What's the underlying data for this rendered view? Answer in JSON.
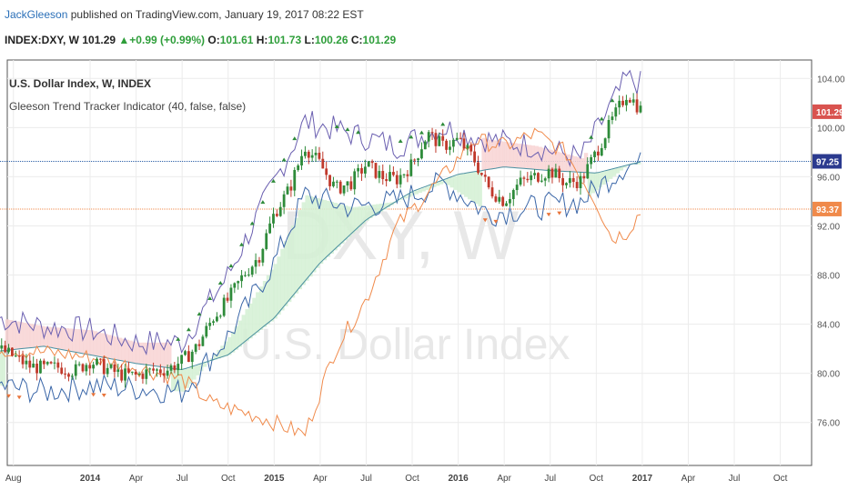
{
  "header": {
    "author": "JackGleeson",
    "published_text": "published on TradingView.com, January 19, 2017 08:22 EST",
    "symbol": "INDEX:DXY, W",
    "last": "101.29",
    "change": "+0.99 (+0.99%)",
    "open_label": "O:",
    "open": "101.61",
    "high_label": "H:",
    "high": "101.73",
    "low_label": "L:",
    "low": "100.26",
    "close_label": "C:",
    "close": "101.29",
    "up_arrow": "▲"
  },
  "legend": {
    "title": "U.S. Dollar Index, W, INDEX",
    "indicator": "Gleeson Trend Tracker Indicator (40, false, false)"
  },
  "watermark": {
    "symbol": "DXY, W",
    "name": "U.S. Dollar Index"
  },
  "price_badges": [
    {
      "value": "101.29",
      "price": 101.29,
      "color": "#d9534f"
    },
    {
      "value": "97.25",
      "price": 97.25,
      "color": "#2b3a8f"
    },
    {
      "value": "93.37",
      "price": 93.37,
      "color": "#f08a4b"
    }
  ],
  "colors": {
    "bull_candle": "#2e8b3a",
    "bear_candle": "#c0392b",
    "upper_band": "#6a5fb0",
    "lower_band": "#3a66a8",
    "slow_line": "#4a8fa0",
    "lagging_line": "#f08a4b",
    "bull_fill": "#d4f0d4",
    "bear_fill": "#f8d4d4",
    "h_line_blue": "#2c5fa6",
    "h_line_orange": "#f08a4b"
  },
  "chart_data": {
    "type": "candlestick",
    "ylim": [
      72.5,
      105.5
    ],
    "y_ticks": [
      76.0,
      80.0,
      84.0,
      88.0,
      92.0,
      96.0,
      100.0,
      104.0
    ],
    "y_tick_labels": [
      "76.00",
      "80.00",
      "84.00",
      "88.00",
      "92.00",
      "96.00",
      "100.00",
      "104.00"
    ],
    "x_tick_labels": [
      "Aug",
      "2014",
      "Apr",
      "Jul",
      "Oct",
      "2015",
      "Apr",
      "Jul",
      "Oct",
      "2016",
      "Apr",
      "Jul",
      "Oct",
      "2017",
      "Apr",
      "Jul",
      "Oct"
    ],
    "x_tick_dates": [
      "2013-08",
      "2014-01",
      "2014-04",
      "2014-07",
      "2014-10",
      "2015-01",
      "2015-04",
      "2015-07",
      "2015-10",
      "2016-01",
      "2016-04",
      "2016-07",
      "2016-10",
      "2017-01",
      "2017-04",
      "2017-07",
      "2017-10"
    ],
    "grid": true,
    "horizontal_lines": [
      97.25,
      93.37
    ],
    "price_path": [
      [
        "2013-07",
        82.0
      ],
      [
        "2013-08",
        81.4
      ],
      [
        "2013-09",
        80.6
      ],
      [
        "2013-10",
        80.4
      ],
      [
        "2013-11",
        80.5
      ],
      [
        "2013-12",
        80.2
      ],
      [
        "2014-01",
        81.0
      ],
      [
        "2014-02",
        80.4
      ],
      [
        "2014-03",
        79.9
      ],
      [
        "2014-04",
        79.8
      ],
      [
        "2014-05",
        80.2
      ],
      [
        "2014-06",
        80.3
      ],
      [
        "2014-07",
        81.0
      ],
      [
        "2014-08",
        82.2
      ],
      [
        "2014-09",
        84.5
      ],
      [
        "2014-10",
        86.0
      ],
      [
        "2014-11",
        88.0
      ],
      [
        "2014-12",
        89.5
      ],
      [
        "2015-01",
        93.0
      ],
      [
        "2015-02",
        95.0
      ],
      [
        "2015-03",
        98.5
      ],
      [
        "2015-04",
        97.0
      ],
      [
        "2015-05",
        95.0
      ],
      [
        "2015-06",
        95.5
      ],
      [
        "2015-07",
        97.0
      ],
      [
        "2015-08",
        96.0
      ],
      [
        "2015-09",
        95.8
      ],
      [
        "2015-10",
        97.0
      ],
      [
        "2015-11",
        99.5
      ],
      [
        "2015-12",
        98.5
      ],
      [
        "2016-01",
        99.0
      ],
      [
        "2016-02",
        97.5
      ],
      [
        "2016-03",
        95.0
      ],
      [
        "2016-04",
        94.0
      ],
      [
        "2016-05",
        95.5
      ],
      [
        "2016-06",
        96.0
      ],
      [
        "2016-07",
        96.5
      ],
      [
        "2016-08",
        95.5
      ],
      [
        "2016-09",
        95.7
      ],
      [
        "2016-10",
        98.0
      ],
      [
        "2016-11",
        100.5
      ],
      [
        "2016-12",
        102.8
      ],
      [
        "2017-01",
        101.29
      ]
    ],
    "upper_band_path": [
      [
        "2013-07",
        84.5
      ],
      [
        "2013-10",
        83.8
      ],
      [
        "2014-01",
        83.5
      ],
      [
        "2014-04",
        82.5
      ],
      [
        "2014-07",
        82.5
      ],
      [
        "2014-10",
        88.0
      ],
      [
        "2015-01",
        95.5
      ],
      [
        "2015-03",
        100.5
      ],
      [
        "2015-06",
        99.5
      ],
      [
        "2015-09",
        98.5
      ],
      [
        "2015-12",
        100.0
      ],
      [
        "2016-03",
        99.0
      ],
      [
        "2016-06",
        98.5
      ],
      [
        "2016-09",
        97.5
      ],
      [
        "2016-12",
        104.0
      ],
      [
        "2017-01",
        103.5
      ]
    ],
    "lower_band_path": [
      [
        "2013-07",
        79.0
      ],
      [
        "2013-10",
        78.5
      ],
      [
        "2014-01",
        79.0
      ],
      [
        "2014-04",
        78.8
      ],
      [
        "2014-07",
        78.5
      ],
      [
        "2014-10",
        83.0
      ],
      [
        "2015-01",
        89.0
      ],
      [
        "2015-03",
        94.5
      ],
      [
        "2015-06",
        93.5
      ],
      [
        "2015-09",
        94.0
      ],
      [
        "2015-12",
        95.5
      ],
      [
        "2016-03",
        93.0
      ],
      [
        "2016-06",
        93.5
      ],
      [
        "2016-09",
        94.0
      ],
      [
        "2016-12",
        97.0
      ],
      [
        "2017-01",
        97.0
      ]
    ],
    "slow_line_path": [
      [
        "2013-07",
        81.8
      ],
      [
        "2013-10",
        82.2
      ],
      [
        "2014-01",
        81.5
      ],
      [
        "2014-04",
        80.8
      ],
      [
        "2014-07",
        80.3
      ],
      [
        "2014-10",
        81.5
      ],
      [
        "2015-01",
        84.5
      ],
      [
        "2015-04",
        89.0
      ],
      [
        "2015-07",
        92.5
      ],
      [
        "2015-10",
        94.8
      ],
      [
        "2016-01",
        96.2
      ],
      [
        "2016-04",
        96.8
      ],
      [
        "2016-07",
        96.5
      ],
      [
        "2016-10",
        96.3
      ],
      [
        "2017-01",
        97.25
      ]
    ],
    "lagging_line_path": [
      [
        "2013-07",
        82.0
      ],
      [
        "2013-12",
        81.5
      ],
      [
        "2014-04",
        80.5
      ],
      [
        "2014-07",
        79.5
      ],
      [
        "2014-09",
        77.5
      ],
      [
        "2014-12",
        76.5
      ],
      [
        "2015-02",
        75.5
      ],
      [
        "2015-03",
        75.0
      ],
      [
        "2015-05",
        82.0
      ],
      [
        "2015-07",
        86.0
      ],
      [
        "2015-09",
        92.0
      ],
      [
        "2015-12",
        96.0
      ],
      [
        "2016-02",
        99.0
      ],
      [
        "2016-04",
        98.5
      ],
      [
        "2016-06",
        99.5
      ],
      [
        "2016-08",
        98.0
      ],
      [
        "2016-10",
        94.0
      ],
      [
        "2016-11",
        91.0
      ],
      [
        "2016-12",
        91.5
      ],
      [
        "2017-01",
        93.37
      ]
    ]
  }
}
